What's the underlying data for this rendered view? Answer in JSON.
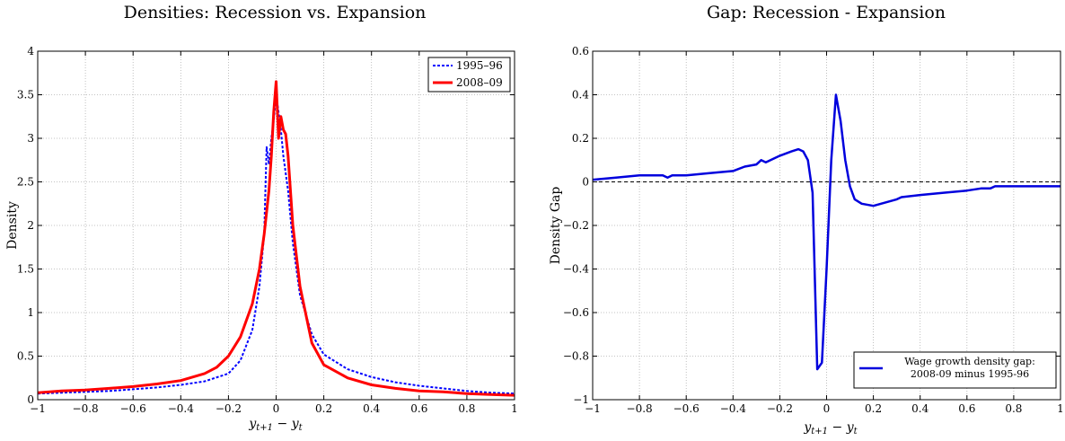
{
  "chart_data": [
    {
      "type": "line",
      "title": "Densities: Recession vs. Expansion",
      "xlabel": "y_{t+1} − y_t",
      "ylabel": "Density",
      "xlim": [
        -1,
        1
      ],
      "ylim": [
        0,
        4
      ],
      "xticks": [
        -1,
        -0.8,
        -0.6,
        -0.4,
        -0.2,
        0,
        0.2,
        0.4,
        0.6,
        0.8,
        1
      ],
      "yticks": [
        0,
        0.5,
        1,
        1.5,
        2,
        2.5,
        3,
        3.5,
        4
      ],
      "xtick_labels": [
        "−1",
        "−0.8",
        "−0.6",
        "−0.4",
        "−0.2",
        "0",
        "0.2",
        "0.4",
        "0.6",
        "0.8",
        "1"
      ],
      "ytick_labels": [
        "0",
        "0.5",
        "1",
        "1.5",
        "2",
        "2.5",
        "3",
        "3.5",
        "4"
      ],
      "grid": true,
      "legend": "top-right",
      "series": [
        {
          "name": "1995–96",
          "color": "#0000ff",
          "style": "dashed",
          "x": [
            -1,
            -0.9,
            -0.8,
            -0.7,
            -0.6,
            -0.5,
            -0.4,
            -0.3,
            -0.2,
            -0.15,
            -0.1,
            -0.07,
            -0.05,
            -0.04,
            -0.03,
            -0.02,
            -0.01,
            0,
            0.01,
            0.02,
            0.03,
            0.05,
            0.07,
            0.1,
            0.15,
            0.2,
            0.3,
            0.4,
            0.5,
            0.6,
            0.7,
            0.8,
            0.9,
            1
          ],
          "y": [
            0.07,
            0.08,
            0.09,
            0.1,
            0.12,
            0.14,
            0.17,
            0.21,
            0.3,
            0.45,
            0.8,
            1.3,
            1.9,
            2.9,
            2.7,
            3.0,
            3.2,
            3.5,
            3.3,
            3.1,
            2.8,
            2.4,
            1.8,
            1.2,
            0.75,
            0.52,
            0.35,
            0.26,
            0.2,
            0.16,
            0.13,
            0.1,
            0.08,
            0.07
          ]
        },
        {
          "name": "2008–09",
          "color": "#ff0000",
          "style": "solid",
          "x": [
            -1,
            -0.9,
            -0.8,
            -0.7,
            -0.6,
            -0.5,
            -0.4,
            -0.3,
            -0.25,
            -0.2,
            -0.15,
            -0.1,
            -0.07,
            -0.05,
            -0.03,
            -0.02,
            -0.01,
            0,
            0.01,
            0.02,
            0.03,
            0.04,
            0.05,
            0.07,
            0.1,
            0.15,
            0.2,
            0.3,
            0.4,
            0.5,
            0.6,
            0.7,
            0.8,
            0.9,
            1
          ],
          "y": [
            0.08,
            0.1,
            0.11,
            0.13,
            0.15,
            0.18,
            0.22,
            0.3,
            0.37,
            0.5,
            0.72,
            1.1,
            1.5,
            1.9,
            2.4,
            2.8,
            3.3,
            3.65,
            3.0,
            3.25,
            3.1,
            3.05,
            2.8,
            2.0,
            1.3,
            0.65,
            0.4,
            0.25,
            0.17,
            0.13,
            0.1,
            0.09,
            0.07,
            0.06,
            0.05
          ]
        }
      ]
    },
    {
      "type": "line",
      "title": "Gap: Recession - Expansion",
      "xlabel": "y_{t+1} − y_t",
      "ylabel": "Density Gap",
      "xlim": [
        -1,
        1
      ],
      "ylim": [
        -1,
        0.6
      ],
      "xticks": [
        -1,
        -0.8,
        -0.6,
        -0.4,
        -0.2,
        0,
        0.2,
        0.4,
        0.6,
        0.8,
        1
      ],
      "yticks": [
        -1,
        -0.8,
        -0.6,
        -0.4,
        -0.2,
        0,
        0.2,
        0.4,
        0.6
      ],
      "xtick_labels": [
        "−1",
        "−0.8",
        "−0.6",
        "−0.4",
        "−0.2",
        "0",
        "0.2",
        "0.4",
        "0.6",
        "0.8",
        "1"
      ],
      "ytick_labels": [
        "−1",
        "−0.8",
        "−0.6",
        "−0.4",
        "−0.2",
        "0",
        "0.2",
        "0.4",
        "0.6"
      ],
      "grid": true,
      "legend": "bottom-right",
      "reference_line": 0,
      "series": [
        {
          "name": "Wage growth density gap: 2008-09 minus 1995-96",
          "color": "#0000dd",
          "style": "solid",
          "x": [
            -1,
            -0.9,
            -0.8,
            -0.7,
            -0.68,
            -0.66,
            -0.6,
            -0.5,
            -0.4,
            -0.35,
            -0.3,
            -0.28,
            -0.26,
            -0.2,
            -0.15,
            -0.12,
            -0.1,
            -0.08,
            -0.06,
            -0.04,
            -0.02,
            0,
            0.02,
            0.04,
            0.06,
            0.08,
            0.1,
            0.12,
            0.15,
            0.2,
            0.3,
            0.32,
            0.4,
            0.5,
            0.6,
            0.66,
            0.7,
            0.72,
            0.8,
            0.9,
            0.95,
            1
          ],
          "y": [
            0.01,
            0.02,
            0.03,
            0.03,
            0.02,
            0.03,
            0.03,
            0.04,
            0.05,
            0.07,
            0.08,
            0.1,
            0.09,
            0.12,
            0.14,
            0.15,
            0.14,
            0.1,
            -0.05,
            -0.86,
            -0.83,
            -0.4,
            0.1,
            0.4,
            0.28,
            0.1,
            -0.02,
            -0.08,
            -0.1,
            -0.11,
            -0.08,
            -0.07,
            -0.06,
            -0.05,
            -0.04,
            -0.03,
            -0.03,
            -0.02,
            -0.02,
            -0.02,
            -0.02,
            -0.02
          ]
        }
      ]
    }
  ]
}
